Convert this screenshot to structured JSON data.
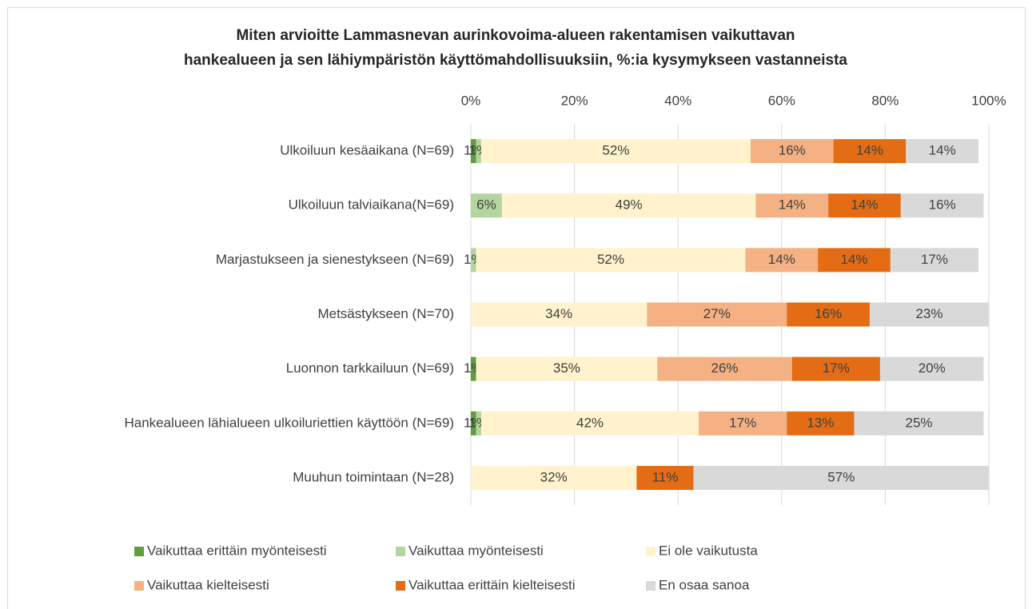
{
  "chart_data": {
    "type": "stacked-bar-horizontal",
    "title": [
      "Miten arvioitte Lammasnevan aurinkovoima-alueen rakentamisen vaikuttavan",
      "hankealueen ja sen lähiympäristön käyttömahdollisuuksiin, %:ia kysymykseen vastanneista"
    ],
    "categories": [
      "Ulkoiluun kesäaikana (N=69)",
      "Ulkoiluun talviaikana(N=69)",
      "Marjastukseen ja sienestykseen (N=69)",
      "Metsästykseen (N=70)",
      "Luonnon tarkkailuun (N=69)",
      "Hankealueen lähialueen ulkoiluriettien käyttöön (N=69)",
      "Muuhun toimintaan (N=28)"
    ],
    "series": [
      {
        "name": "Vaikuttaa erittäin myönteisesti",
        "color": "#5f9e3c",
        "values": [
          1,
          null,
          null,
          null,
          1,
          1,
          null
        ],
        "value_labels": [
          "1%",
          null,
          null,
          null,
          "1%",
          "1%",
          null
        ]
      },
      {
        "name": "Vaikuttaa myönteisesti",
        "color": "#b5d59f",
        "values": [
          1,
          6,
          1,
          null,
          null,
          1,
          null
        ],
        "value_labels": [
          "1%",
          "6%",
          "1%",
          null,
          null,
          "1%",
          null
        ]
      },
      {
        "name": "Ei ole vaikutusta",
        "color": "#fff2cc",
        "values": [
          52,
          49,
          52,
          34,
          35,
          42,
          32
        ],
        "value_labels": [
          "52%",
          "49%",
          "52%",
          "34%",
          "35%",
          "42%",
          "32%"
        ]
      },
      {
        "name": "Vaikuttaa kielteisesti",
        "color": "#f4b183",
        "values": [
          16,
          14,
          14,
          27,
          26,
          17,
          null
        ],
        "value_labels": [
          "16%",
          "14%",
          "14%",
          "27%",
          "26%",
          "17%",
          null
        ]
      },
      {
        "name": "Vaikuttaa erittäin kielteisesti",
        "color": "#e36c14",
        "values": [
          14,
          14,
          14,
          16,
          17,
          13,
          11
        ],
        "value_labels": [
          "14%",
          "14%",
          "14%",
          "16%",
          "17%",
          "13%",
          "11%"
        ]
      },
      {
        "name": "En osaa sanoa",
        "color": "#d9d9d9",
        "values": [
          14,
          16,
          17,
          23,
          20,
          25,
          57
        ],
        "value_labels": [
          "14%",
          "16%",
          "17%",
          "23%",
          "20%",
          "25%",
          "57%"
        ]
      }
    ],
    "xlim": [
      0,
      100
    ],
    "xticks": [
      {
        "value": 0,
        "label": "0%"
      },
      {
        "value": 20,
        "label": "20%"
      },
      {
        "value": 40,
        "label": "40%"
      },
      {
        "value": 60,
        "label": "60%"
      },
      {
        "value": 80,
        "label": "80%"
      },
      {
        "value": 100,
        "label": "100%"
      }
    ],
    "grid": true,
    "legend": "bottom"
  }
}
